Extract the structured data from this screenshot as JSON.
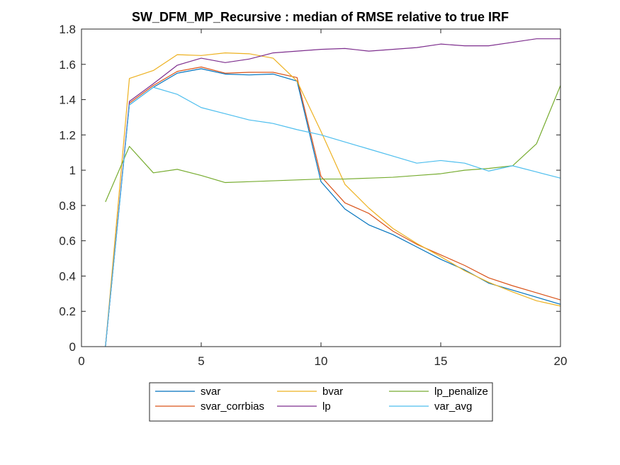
{
  "chart_data": {
    "type": "line",
    "title": "SW_DFM_MP_Recursive : median of RMSE relative to true IRF",
    "xlabel": "",
    "ylabel": "",
    "xlim": [
      0,
      20
    ],
    "ylim": [
      0,
      1.8
    ],
    "xticks": [
      0,
      5,
      10,
      15,
      20
    ],
    "yticks": [
      0,
      0.2,
      0.4,
      0.6,
      0.8,
      1,
      1.2,
      1.4,
      1.6,
      1.8
    ],
    "xtick_labels": [
      "0",
      "5",
      "10",
      "15",
      "20"
    ],
    "ytick_labels": [
      "0",
      "0.2",
      "0.4",
      "0.6",
      "0.8",
      "1",
      "1.2",
      "1.4",
      "1.6",
      "1.8"
    ],
    "grid": false,
    "legend_position": "bottom-outside",
    "x": [
      1,
      2,
      3,
      4,
      5,
      6,
      7,
      8,
      9,
      10,
      11,
      12,
      13,
      14,
      15,
      16,
      17,
      18,
      19,
      20
    ],
    "series": [
      {
        "name": "svar",
        "color": "#0072BD",
        "values": [
          0.0,
          1.37,
          1.47,
          1.55,
          1.575,
          1.545,
          1.54,
          1.545,
          1.505,
          0.935,
          0.78,
          0.69,
          0.635,
          0.565,
          0.495,
          0.435,
          0.36,
          0.32,
          0.28,
          0.24
        ]
      },
      {
        "name": "svar_corrbias",
        "color": "#D95319",
        "values": [
          0.0,
          1.38,
          1.48,
          1.56,
          1.585,
          1.55,
          1.555,
          1.555,
          1.525,
          0.965,
          0.815,
          0.755,
          0.655,
          0.58,
          0.52,
          0.46,
          0.39,
          0.345,
          0.305,
          0.265
        ]
      },
      {
        "name": "bvar",
        "color": "#EDB120",
        "values": [
          0.0,
          1.52,
          1.565,
          1.655,
          1.65,
          1.665,
          1.66,
          1.635,
          1.505,
          1.22,
          0.92,
          0.785,
          0.67,
          0.585,
          0.51,
          0.43,
          0.365,
          0.31,
          0.26,
          0.23
        ]
      },
      {
        "name": "lp",
        "color": "#7E2F8E",
        "values": [
          0.0,
          1.39,
          1.49,
          1.595,
          1.635,
          1.61,
          1.63,
          1.665,
          1.675,
          1.685,
          1.69,
          1.675,
          1.685,
          1.695,
          1.715,
          1.705,
          1.705,
          1.725,
          1.745,
          1.745
        ]
      },
      {
        "name": "lp_penalize",
        "color": "#77AC30",
        "values": [
          0.82,
          1.135,
          0.985,
          1.005,
          0.97,
          0.93,
          0.935,
          0.94,
          0.945,
          0.95,
          0.95,
          0.955,
          0.96,
          0.97,
          0.98,
          1.0,
          1.01,
          1.025,
          1.15,
          1.48
        ]
      },
      {
        "name": "var_avg",
        "color": "#4DBEEE",
        "values": [
          0.0,
          1.37,
          1.47,
          1.43,
          1.355,
          1.32,
          1.285,
          1.265,
          1.23,
          1.2,
          1.16,
          1.12,
          1.08,
          1.04,
          1.055,
          1.04,
          0.995,
          1.025,
          0.99,
          0.955
        ]
      }
    ],
    "legend_layout": [
      [
        "svar",
        "bvar",
        "lp_penalize"
      ],
      [
        "svar_corrbias",
        "lp",
        "var_avg"
      ]
    ]
  }
}
